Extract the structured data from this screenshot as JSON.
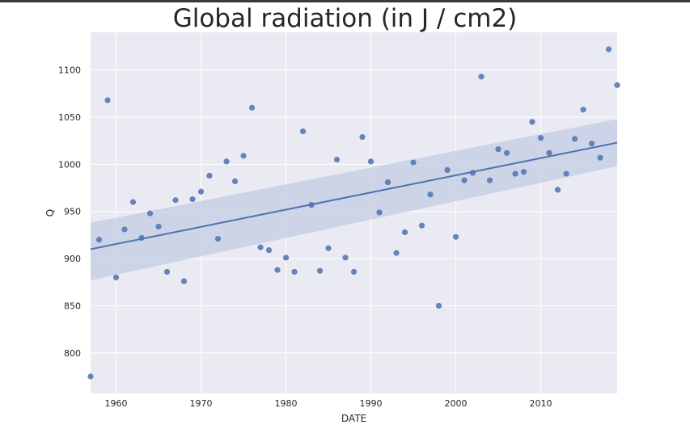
{
  "chart_data": {
    "type": "scatter",
    "title": "Global radiation (in J / cm2)",
    "xlabel": "DATE",
    "ylabel": "Q",
    "xlim": [
      1957,
      2019
    ],
    "ylim": [
      757,
      1140
    ],
    "x_ticks": [
      1960,
      1970,
      1980,
      1990,
      2000,
      2010
    ],
    "y_ticks": [
      800,
      850,
      900,
      950,
      1000,
      1050,
      1100
    ],
    "grid": true,
    "colors": {
      "background": "#eaeaf2",
      "grid": "#ffffff",
      "points": "#4c72b0",
      "line": "#4c72b0",
      "band": "#c3cce3"
    },
    "regression": {
      "x": [
        1957,
        2019
      ],
      "y": [
        910,
        1023
      ],
      "ci_lower": [
        877,
        998
      ],
      "ci_upper": [
        938,
        1048
      ]
    },
    "x": [
      1957,
      1958,
      1959,
      1960,
      1961,
      1962,
      1963,
      1964,
      1965,
      1966,
      1967,
      1968,
      1969,
      1970,
      1971,
      1972,
      1973,
      1974,
      1975,
      1976,
      1977,
      1978,
      1979,
      1980,
      1981,
      1982,
      1983,
      1984,
      1985,
      1986,
      1987,
      1988,
      1989,
      1990,
      1991,
      1992,
      1993,
      1994,
      1995,
      1996,
      1997,
      1998,
      1999,
      2000,
      2001,
      2002,
      2003,
      2004,
      2005,
      2006,
      2007,
      2008,
      2009,
      2010,
      2011,
      2012,
      2013,
      2014,
      2015,
      2016,
      2017,
      2018,
      2019
    ],
    "y": [
      775,
      920,
      1068,
      880,
      931,
      960,
      922,
      948,
      934,
      886,
      962,
      876,
      963,
      971,
      988,
      921,
      1003,
      982,
      1009,
      1060,
      912,
      909,
      888,
      901,
      886,
      1035,
      957,
      887,
      911,
      1005,
      901,
      886,
      1029,
      1003,
      949,
      981,
      906,
      928,
      1002,
      935,
      968,
      850,
      994,
      923,
      983,
      991,
      1093,
      983,
      1016,
      1012,
      990,
      992,
      1045,
      1028,
      1012,
      973,
      990,
      1027,
      1058,
      1022,
      1007,
      1122,
      1084
    ]
  }
}
